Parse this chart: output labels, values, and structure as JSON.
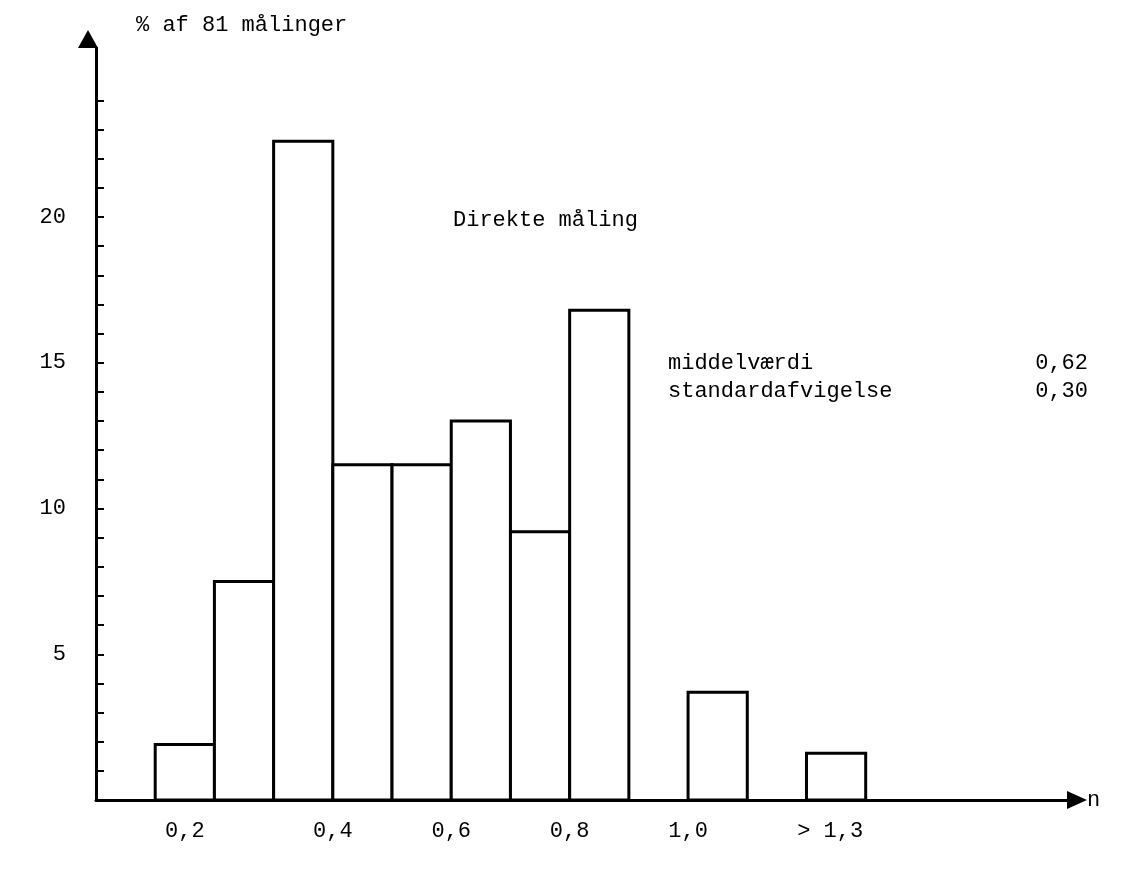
{
  "chart_data": {
    "type": "histogram",
    "xlabel": "n",
    "ylabel": "% af 81 målinger",
    "bins": [
      0.1,
      0.2,
      0.3,
      0.4,
      0.5,
      0.6,
      0.7,
      0.8,
      0.9,
      1.0,
      1.1,
      1.2,
      1.3
    ],
    "values": [
      1.9,
      7.5,
      22.6,
      11.5,
      11.5,
      13.0,
      9.2,
      16.8,
      null,
      3.7,
      null,
      1.6
    ],
    "color": "#ffffff",
    "xlim": [
      0,
      1.64
    ],
    "xticks": [
      {
        "value": 0.15,
        "label": "0,2"
      },
      {
        "value": 0.4,
        "label": "0,4"
      },
      {
        "value": 0.6,
        "label": "0,6"
      },
      {
        "value": 0.8,
        "label": "0,8"
      },
      {
        "value": 1.0,
        "label": "1,0"
      },
      {
        "value": 1.24,
        "label": "> 1,3"
      }
    ],
    "ylim": [
      0,
      25.8
    ],
    "yticks": [
      {
        "value": 1,
        "label": null
      },
      {
        "value": 2,
        "label": null
      },
      {
        "value": 3,
        "label": null
      },
      {
        "value": 4,
        "label": null
      },
      5,
      {
        "value": 6,
        "label": null
      },
      {
        "value": 7,
        "label": null
      },
      {
        "value": 8,
        "label": null
      },
      {
        "value": 9,
        "label": null
      },
      10,
      {
        "value": 11,
        "label": null
      },
      {
        "value": 12,
        "label": null
      },
      {
        "value": 13,
        "label": null
      },
      {
        "value": 14,
        "label": null
      },
      15,
      {
        "value": 16,
        "label": null
      },
      {
        "value": 17,
        "label": null
      },
      {
        "value": 18,
        "label": null
      },
      {
        "value": 19,
        "label": null
      },
      20,
      {
        "value": 21,
        "label": null
      },
      {
        "value": 22,
        "label": null
      },
      {
        "value": 23,
        "label": null
      },
      {
        "value": 24,
        "label": null
      }
    ],
    "annotations": [
      "Direkte måling",
      "middelværdi",
      "0,62",
      "standardafvigelse",
      "0,30"
    ],
    "grid": false
  }
}
